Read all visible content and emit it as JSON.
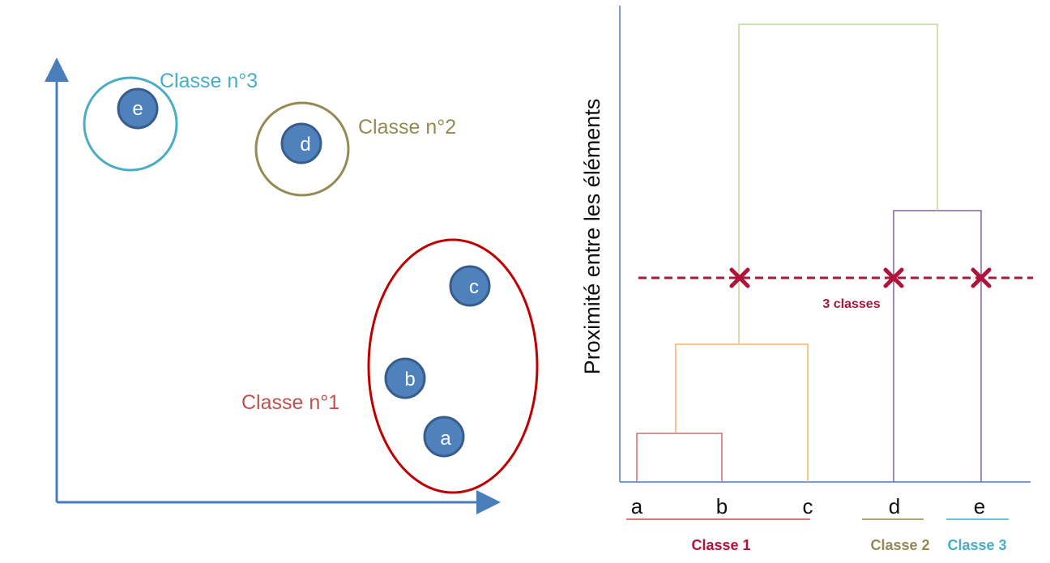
{
  "colors": {
    "axis": "#4a7ebb",
    "node_fill": "#4f81bd",
    "node_stroke": "#385d8a",
    "class1": "#c0504d",
    "class1_ellipse": "#c00000",
    "class2": "#948a54",
    "class3": "#4bacc6",
    "cut": "#b0133a",
    "tree_ab": "#d46a6a",
    "tree_abc": "#f6b26b",
    "tree_root": "#c4d79b",
    "tree_de": "#8064a2",
    "bottom_class2": "#938953",
    "bottom_class3": "#4bacc6"
  },
  "scatter": {
    "nodes": [
      {
        "id": "a",
        "label": "a"
      },
      {
        "id": "b",
        "label": "b"
      },
      {
        "id": "c",
        "label": "c"
      },
      {
        "id": "d",
        "label": "d"
      },
      {
        "id": "e",
        "label": "e"
      }
    ],
    "class_labels": {
      "class1": "Classe n°1",
      "class2": "Classe n°2",
      "class3": "Classe n°3"
    }
  },
  "dendrogram": {
    "axis_title": "Proximité entre les éléments",
    "leaves": [
      "a",
      "b",
      "c",
      "d",
      "e"
    ],
    "cut_label": "3 classes",
    "bottom_classes": {
      "class1": "Classe 1",
      "class2": "Classe 2",
      "class3": "Classe 3"
    }
  }
}
